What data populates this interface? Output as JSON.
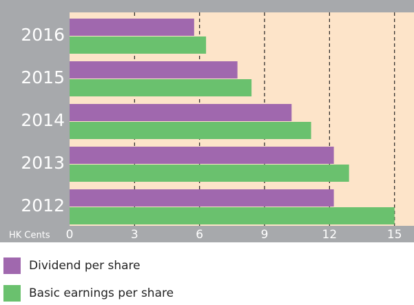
{
  "chart_data": {
    "type": "hbar",
    "categories": [
      "2016",
      "2015",
      "2014",
      "2013",
      "2012"
    ],
    "series": [
      {
        "name": "Dividend per share",
        "color": "#a068ae",
        "values": [
          5.75,
          7.75,
          10.25,
          12.2,
          12.2
        ]
      },
      {
        "name": "Basic earnings per share",
        "color": "#6ac16e",
        "values": [
          6.3,
          8.4,
          11.15,
          12.9,
          15.0
        ]
      }
    ],
    "xlabel": "HK Cents",
    "xlim": [
      0,
      15.9
    ],
    "xticks": [
      0,
      3,
      6,
      9,
      12,
      15
    ],
    "grid": true
  }
}
